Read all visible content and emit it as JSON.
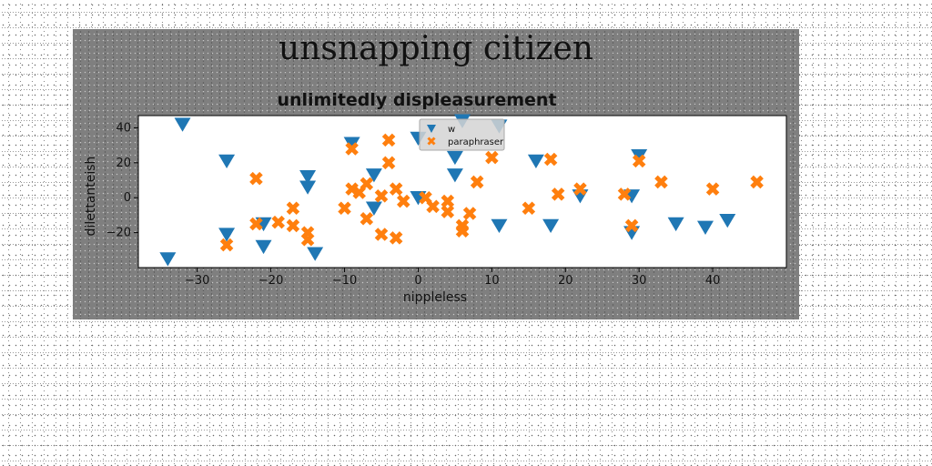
{
  "figure": {
    "suptitle": "unsnapping citizen"
  },
  "chart_data": {
    "type": "scatter",
    "title": "unlimitedly displeasurement",
    "xlabel": "nippleless",
    "ylabel": "dilettanteish",
    "xlim": [
      -38,
      50
    ],
    "ylim": [
      -40,
      47
    ],
    "xticks": [
      -30,
      -20,
      -10,
      0,
      10,
      20,
      30,
      40
    ],
    "yticks": [
      -20,
      0,
      20,
      40
    ],
    "grid": false,
    "legend_position": "top-center",
    "series": [
      {
        "name": "w",
        "marker": "triangle-down",
        "color": "#1f77b4",
        "points": [
          [
            -34,
            -35
          ],
          [
            -32,
            42
          ],
          [
            -26,
            21
          ],
          [
            -26,
            -21
          ],
          [
            -21,
            -15
          ],
          [
            -21,
            -28
          ],
          [
            -15,
            12
          ],
          [
            -15,
            6
          ],
          [
            -14,
            -32
          ],
          [
            -9,
            31
          ],
          [
            -6,
            13
          ],
          [
            -6,
            -6
          ],
          [
            0,
            34
          ],
          [
            0,
            0
          ],
          [
            5,
            23
          ],
          [
            5,
            13
          ],
          [
            6,
            44
          ],
          [
            11,
            41
          ],
          [
            11,
            -16
          ],
          [
            16,
            21
          ],
          [
            18,
            -16
          ],
          [
            22,
            1
          ],
          [
            29,
            1
          ],
          [
            29,
            -20
          ],
          [
            30,
            24
          ],
          [
            35,
            -15
          ],
          [
            39,
            -17
          ],
          [
            42,
            -13
          ]
        ]
      },
      {
        "name": "paraphraser",
        "marker": "x",
        "color": "#ff7f0e",
        "points": [
          [
            -26,
            -27
          ],
          [
            -22,
            11
          ],
          [
            -22,
            -15
          ],
          [
            -19,
            -14
          ],
          [
            -17,
            -6
          ],
          [
            -17,
            -16
          ],
          [
            -15,
            -20
          ],
          [
            -15,
            -24
          ],
          [
            -10,
            -6
          ],
          [
            -9,
            28
          ],
          [
            -9,
            5
          ],
          [
            -8,
            3
          ],
          [
            -7,
            8
          ],
          [
            -7,
            -12
          ],
          [
            -5,
            1
          ],
          [
            -5,
            -21
          ],
          [
            -4,
            33
          ],
          [
            -4,
            20
          ],
          [
            -3,
            5
          ],
          [
            -3,
            -23
          ],
          [
            -2,
            -2
          ],
          [
            1,
            0
          ],
          [
            2,
            -5
          ],
          [
            4,
            -8
          ],
          [
            4,
            -2
          ],
          [
            6,
            -16
          ],
          [
            6,
            -19
          ],
          [
            7,
            -9
          ],
          [
            8,
            9
          ],
          [
            10,
            23
          ],
          [
            15,
            -6
          ],
          [
            18,
            22
          ],
          [
            19,
            2
          ],
          [
            22,
            5
          ],
          [
            28,
            2
          ],
          [
            29,
            -16
          ],
          [
            30,
            21
          ],
          [
            33,
            9
          ],
          [
            40,
            5
          ],
          [
            46,
            9
          ]
        ]
      }
    ]
  }
}
